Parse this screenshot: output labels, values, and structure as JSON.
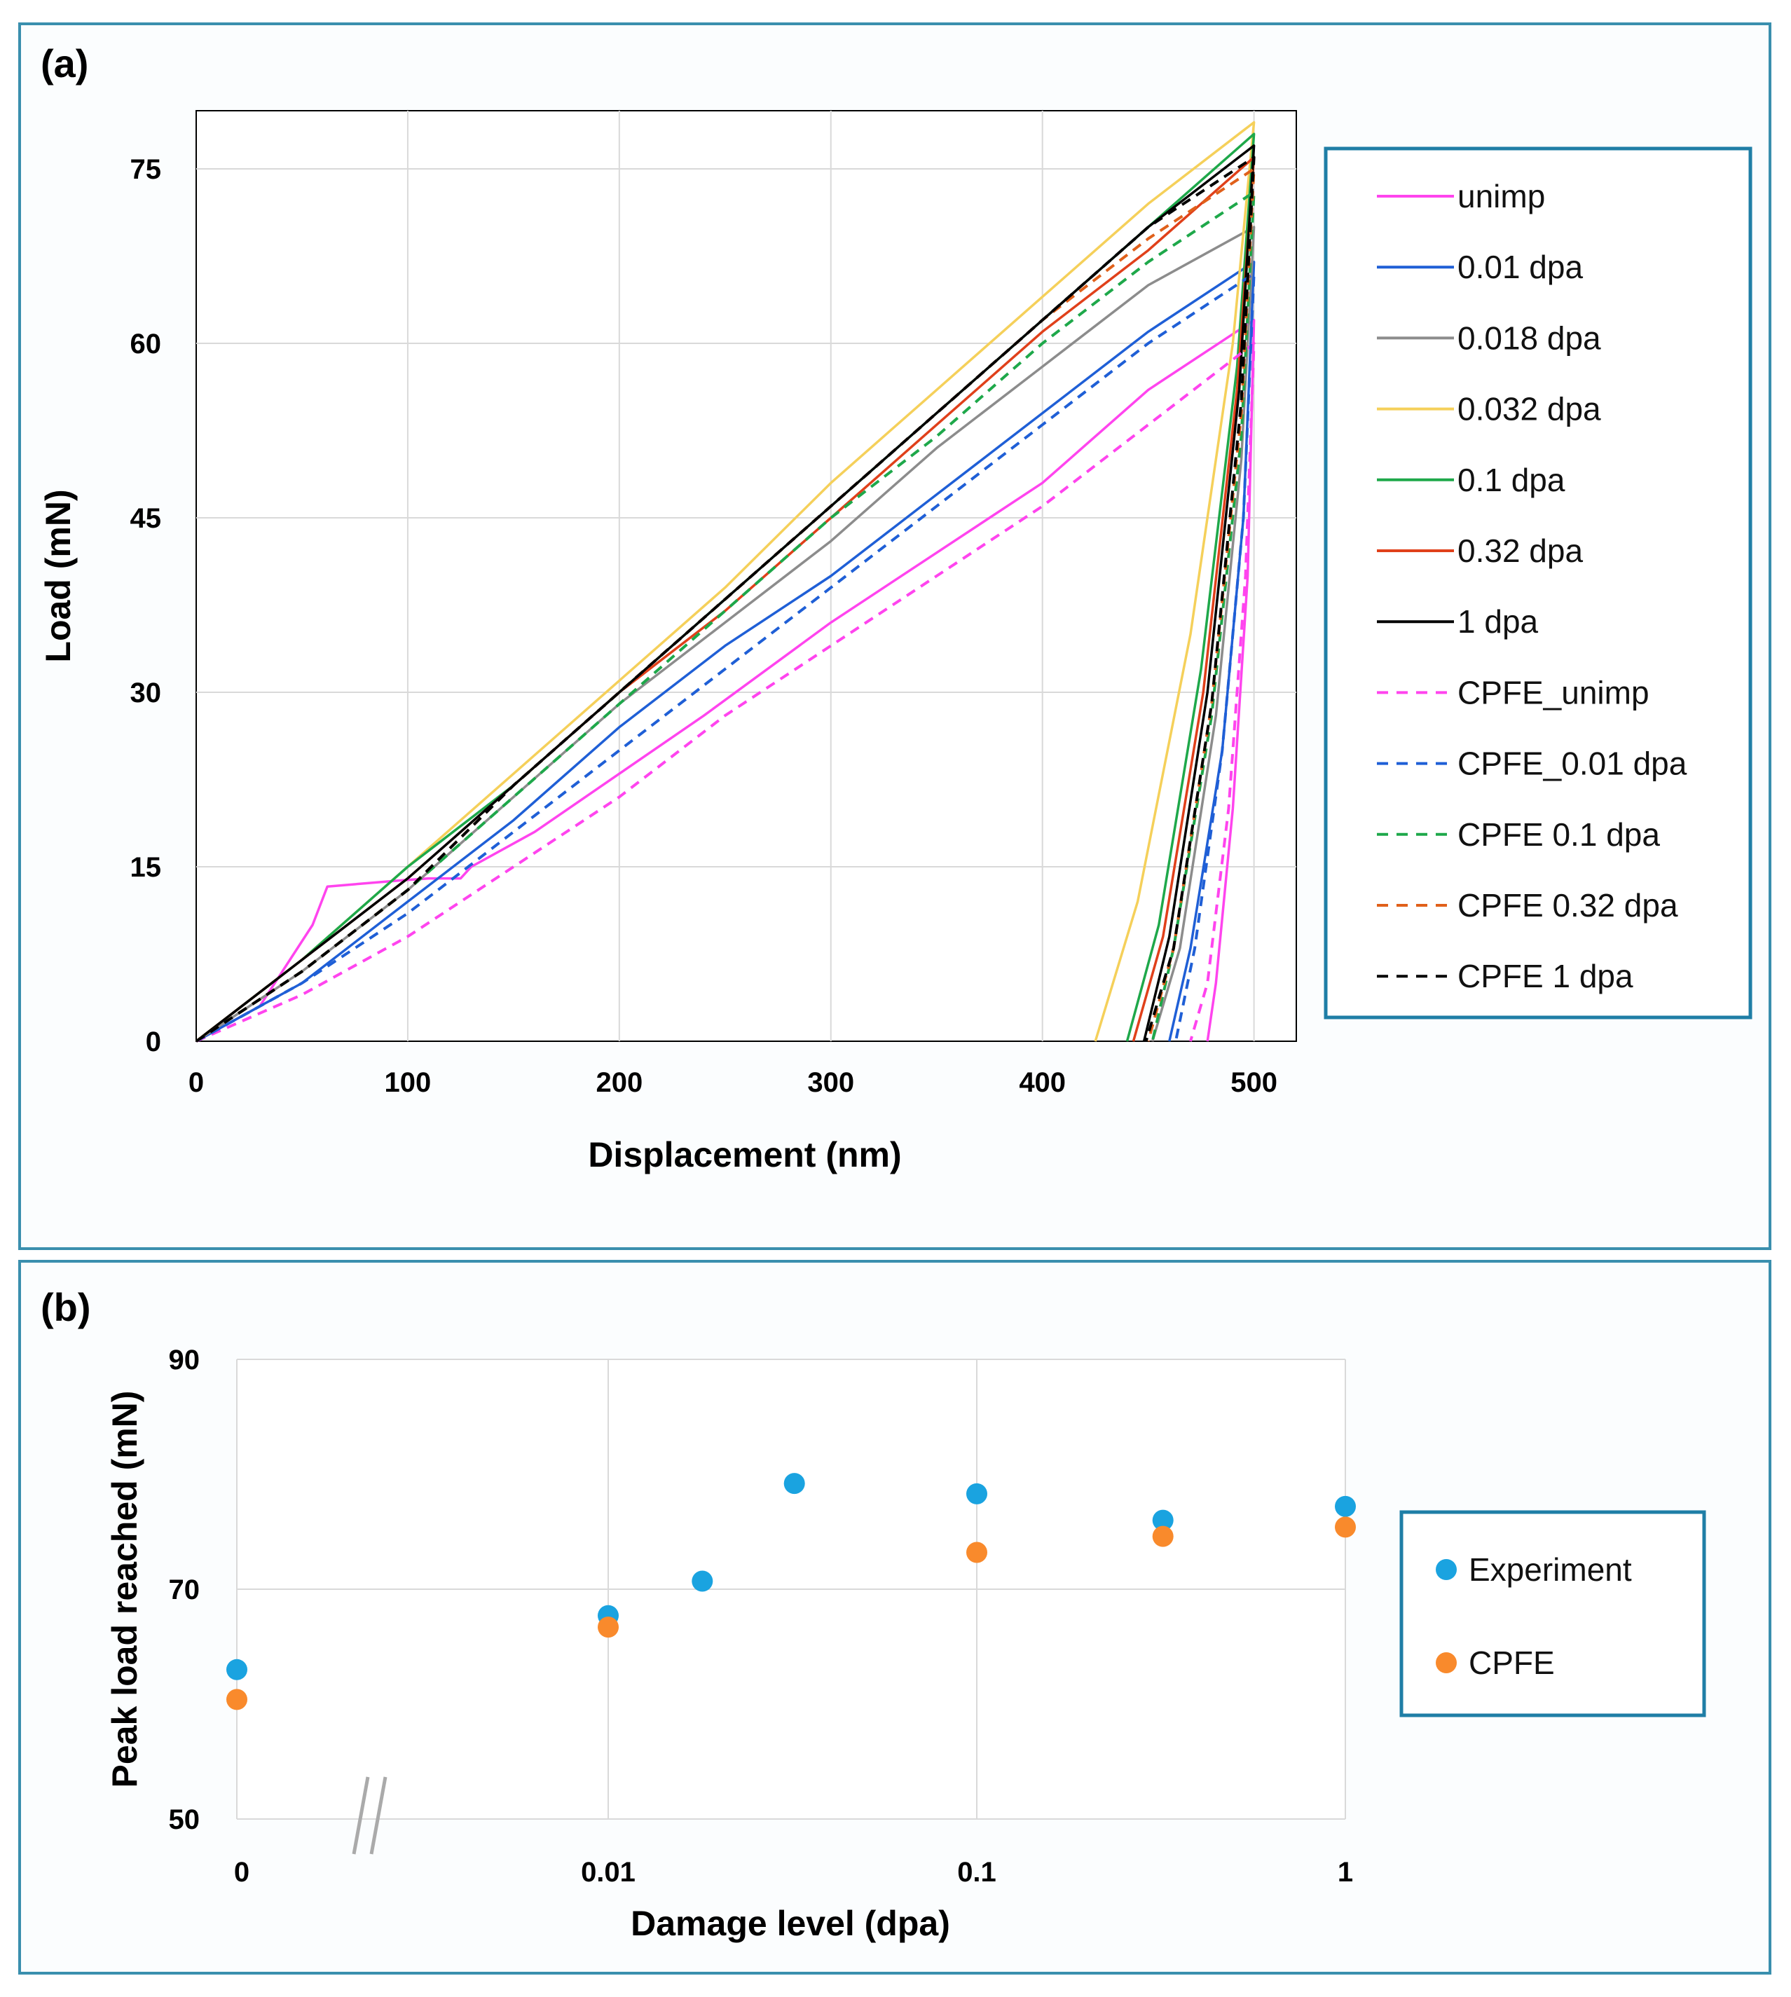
{
  "chart_data": [
    {
      "panel_label": "(a)",
      "type": "line",
      "title": "",
      "xlabel": "Displacement  (nm)",
      "ylabel": "Load (mN)",
      "xlim": [
        0,
        520
      ],
      "ylim": [
        0,
        80
      ],
      "xticks": [
        0,
        100,
        200,
        300,
        400,
        500
      ],
      "yticks": [
        0,
        15,
        30,
        45,
        60,
        75
      ],
      "grid": true,
      "legend_position": "right",
      "series": [
        {
          "name": "unimp",
          "color": "#ff44ee",
          "dash": "solid",
          "points": [
            [
              0,
              0
            ],
            [
              30,
              3
            ],
            [
              55,
              10
            ],
            [
              62,
              13.3
            ],
            [
              95,
              13.8
            ],
            [
              110,
              14
            ],
            [
              125,
              14
            ],
            [
              130,
              15
            ],
            [
              160,
              18
            ],
            [
              200,
              23
            ],
            [
              240,
              28
            ],
            [
              300,
              36
            ],
            [
              350,
              42
            ],
            [
              400,
              48
            ],
            [
              450,
              56
            ],
            [
              500,
              62
            ],
            [
              497,
              40
            ],
            [
              490,
              20
            ],
            [
              482,
              5
            ],
            [
              478,
              0
            ]
          ]
        },
        {
          "name": "0.01 dpa",
          "color": "#1f5fd6",
          "dash": "solid",
          "points": [
            [
              0,
              0
            ],
            [
              50,
              5
            ],
            [
              100,
              12
            ],
            [
              150,
              19
            ],
            [
              200,
              27
            ],
            [
              250,
              34
            ],
            [
              300,
              40
            ],
            [
              350,
              47
            ],
            [
              400,
              54
            ],
            [
              450,
              61
            ],
            [
              500,
              67
            ],
            [
              495,
              45
            ],
            [
              485,
              25
            ],
            [
              470,
              8
            ],
            [
              460,
              0
            ]
          ]
        },
        {
          "name": "0.018 dpa",
          "color": "#8c8c8c",
          "dash": "solid",
          "points": [
            [
              0,
              0
            ],
            [
              50,
              6
            ],
            [
              100,
              13
            ],
            [
              150,
              21
            ],
            [
              200,
              29
            ],
            [
              250,
              36
            ],
            [
              300,
              43
            ],
            [
              350,
              51
            ],
            [
              400,
              58
            ],
            [
              450,
              65
            ],
            [
              500,
              70
            ],
            [
              494,
              50
            ],
            [
              482,
              28
            ],
            [
              465,
              8
            ],
            [
              452,
              0
            ]
          ]
        },
        {
          "name": "0.032 dpa",
          "color": "#f5d05a",
          "dash": "solid",
          "points": [
            [
              0,
              0
            ],
            [
              50,
              7
            ],
            [
              100,
              15
            ],
            [
              150,
              23
            ],
            [
              200,
              31
            ],
            [
              250,
              39
            ],
            [
              300,
              48
            ],
            [
              350,
              56
            ],
            [
              400,
              64
            ],
            [
              450,
              72
            ],
            [
              500,
              79
            ],
            [
              490,
              60
            ],
            [
              470,
              35
            ],
            [
              445,
              12
            ],
            [
              425,
              0
            ]
          ]
        },
        {
          "name": "0.1 dpa",
          "color": "#1ea84a",
          "dash": "solid",
          "points": [
            [
              0,
              0
            ],
            [
              50,
              7
            ],
            [
              100,
              15
            ],
            [
              150,
              22
            ],
            [
              200,
              30
            ],
            [
              250,
              38
            ],
            [
              300,
              46
            ],
            [
              350,
              54
            ],
            [
              400,
              62
            ],
            [
              450,
              70
            ],
            [
              500,
              78
            ],
            [
              492,
              58
            ],
            [
              475,
              32
            ],
            [
              455,
              10
            ],
            [
              440,
              0
            ]
          ]
        },
        {
          "name": "0.32 dpa",
          "color": "#e0401a",
          "dash": "solid",
          "points": [
            [
              0,
              0
            ],
            [
              50,
              7
            ],
            [
              100,
              14
            ],
            [
              150,
              22
            ],
            [
              200,
              30
            ],
            [
              250,
              37
            ],
            [
              300,
              45
            ],
            [
              350,
              53
            ],
            [
              400,
              61
            ],
            [
              450,
              68
            ],
            [
              500,
              76
            ],
            [
              492,
              56
            ],
            [
              476,
              30
            ],
            [
              457,
              9
            ],
            [
              443,
              0
            ]
          ]
        },
        {
          "name": "1 dpa",
          "color": "#000000",
          "dash": "solid",
          "points": [
            [
              0,
              0
            ],
            [
              50,
              7
            ],
            [
              100,
              14
            ],
            [
              150,
              22
            ],
            [
              200,
              30
            ],
            [
              250,
              38
            ],
            [
              300,
              46
            ],
            [
              350,
              54
            ],
            [
              400,
              62
            ],
            [
              450,
              70
            ],
            [
              500,
              77
            ],
            [
              493,
              56
            ],
            [
              478,
              30
            ],
            [
              460,
              9
            ],
            [
              448,
              0
            ]
          ]
        },
        {
          "name": "CPFE_unimp",
          "color": "#ff44ee",
          "dash": "dashed",
          "points": [
            [
              0,
              0
            ],
            [
              50,
              4
            ],
            [
              100,
              9
            ],
            [
              150,
              15
            ],
            [
              200,
              21
            ],
            [
              250,
              28
            ],
            [
              300,
              34
            ],
            [
              350,
              40
            ],
            [
              400,
              46
            ],
            [
              450,
              53
            ],
            [
              500,
              60
            ],
            [
              496,
              40
            ],
            [
              488,
              20
            ],
            [
              478,
              5
            ],
            [
              470,
              0
            ]
          ]
        },
        {
          "name": "CPFE_0.01 dpa",
          "color": "#1f5fd6",
          "dash": "dashed",
          "points": [
            [
              0,
              0
            ],
            [
              50,
              5
            ],
            [
              100,
              11
            ],
            [
              150,
              18
            ],
            [
              200,
              25
            ],
            [
              250,
              32
            ],
            [
              300,
              39
            ],
            [
              350,
              46
            ],
            [
              400,
              53
            ],
            [
              450,
              60
            ],
            [
              500,
              66
            ],
            [
              495,
              45
            ],
            [
              485,
              25
            ],
            [
              472,
              8
            ],
            [
              463,
              0
            ]
          ]
        },
        {
          "name": "CPFE 0.1 dpa",
          "color": "#1ea84a",
          "dash": "dashed",
          "points": [
            [
              0,
              0
            ],
            [
              50,
              6
            ],
            [
              100,
              13
            ],
            [
              150,
              21
            ],
            [
              200,
              29
            ],
            [
              250,
              37
            ],
            [
              300,
              45
            ],
            [
              350,
              52
            ],
            [
              400,
              60
            ],
            [
              450,
              67
            ],
            [
              500,
              73
            ],
            [
              494,
              52
            ],
            [
              480,
              28
            ],
            [
              462,
              8
            ],
            [
              452,
              0
            ]
          ]
        },
        {
          "name": "CPFE 0.32 dpa",
          "color": "#e0601a",
          "dash": "dashed",
          "points": [
            [
              0,
              0
            ],
            [
              50,
              6
            ],
            [
              100,
              13
            ],
            [
              150,
              22
            ],
            [
              200,
              30
            ],
            [
              250,
              38
            ],
            [
              300,
              46
            ],
            [
              350,
              54
            ],
            [
              400,
              62
            ],
            [
              450,
              69
            ],
            [
              500,
              75
            ],
            [
              494,
              54
            ],
            [
              480,
              29
            ],
            [
              462,
              8
            ],
            [
              450,
              0
            ]
          ]
        },
        {
          "name": "CPFE 1 dpa",
          "color": "#000000",
          "dash": "dashed",
          "points": [
            [
              0,
              0
            ],
            [
              50,
              6
            ],
            [
              100,
              13
            ],
            [
              150,
              22
            ],
            [
              200,
              30
            ],
            [
              250,
              38
            ],
            [
              300,
              46
            ],
            [
              350,
              54
            ],
            [
              400,
              62
            ],
            [
              450,
              70
            ],
            [
              500,
              76
            ],
            [
              494,
              55
            ],
            [
              480,
              29
            ],
            [
              462,
              8
            ],
            [
              449,
              0
            ]
          ]
        }
      ]
    },
    {
      "panel_label": "(b)",
      "type": "scatter",
      "title": "",
      "xlabel": "Damage level (dpa)",
      "ylabel": "Peak load reached (mN)",
      "xscale": "log (with axis break before 0.01)",
      "ylim": [
        50,
        90
      ],
      "yticks": [
        50,
        70,
        90
      ],
      "xtick_labels": [
        "0",
        "0.01",
        "0.1",
        "1"
      ],
      "grid": true,
      "legend_position": "right",
      "series": [
        {
          "name": "Experiment",
          "color": "#1aa3e0",
          "points": [
            [
              "0",
              63
            ],
            [
              0.01,
              67.7
            ],
            [
              0.018,
              70.7
            ],
            [
              0.032,
              79.2
            ],
            [
              0.1,
              78.3
            ],
            [
              0.32,
              76
            ],
            [
              1,
              77.2
            ]
          ]
        },
        {
          "name": "CPFE",
          "color": "#f98a2c",
          "points": [
            [
              "0",
              60.4
            ],
            [
              0.01,
              66.7
            ],
            [
              0.1,
              73.2
            ],
            [
              0.32,
              74.6
            ],
            [
              1,
              75.4
            ]
          ]
        }
      ]
    }
  ]
}
